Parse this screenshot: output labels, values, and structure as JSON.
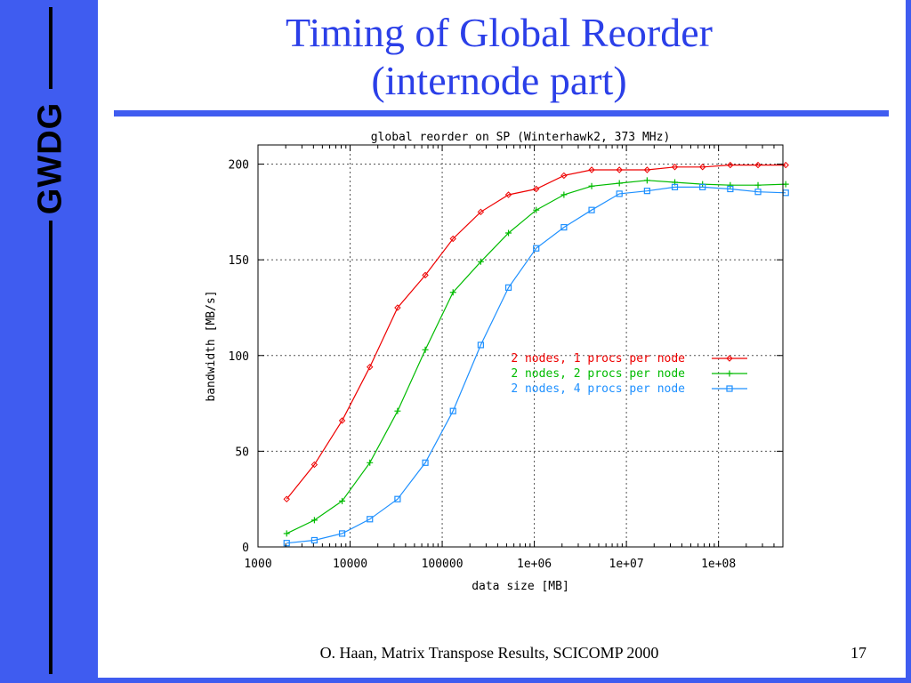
{
  "slide": {
    "brand": "GWDG",
    "title_line1": "Timing of Global Reorder",
    "title_line2": "(internode part)",
    "footer": "O. Haan, Matrix Transpose Results, SCICOMP 2000",
    "page_number": "17"
  },
  "colors": {
    "accent_blue": "#3f5cf0",
    "title_blue": "#2b3fe8",
    "series_red": "#ee0000",
    "series_green": "#00bb00",
    "series_blue": "#1e90ff"
  },
  "chart_data": {
    "type": "line",
    "title": "global reorder on SP (Winterhawk2, 373 MHz)",
    "xlabel": "data size [MB]",
    "ylabel": "bandwidth [MB/s]",
    "xscale": "log",
    "xlim": [
      1000,
      500000000
    ],
    "ylim": [
      0,
      210
    ],
    "xticks": [
      1000,
      10000,
      100000,
      1000000,
      10000000,
      100000000
    ],
    "xtick_labels": [
      "1000",
      "10000",
      "100000",
      "1e+06",
      "1e+07",
      "1e+08"
    ],
    "yticks": [
      0,
      50,
      100,
      150,
      200
    ],
    "ytick_labels": [
      "0",
      "50",
      "100",
      "150",
      "200"
    ],
    "grid": true,
    "legend_position": "center-right",
    "x": [
      2048,
      4096,
      8192,
      16384,
      32768,
      65536,
      131072,
      262144,
      524288,
      1048576,
      2097152,
      4194304,
      8388608,
      16777216,
      33554432,
      67108864,
      134217728,
      268435456,
      536870912
    ],
    "series": [
      {
        "name": "2 nodes, 1 procs per node",
        "marker": "diamond",
        "values": [
          25,
          43,
          66,
          94,
          125,
          142,
          161,
          175,
          184,
          187,
          194,
          197,
          197,
          197,
          198.5,
          198.5,
          199.5,
          199.5,
          199.5
        ]
      },
      {
        "name": "2 nodes, 2 procs per node",
        "marker": "plus",
        "values": [
          7,
          14,
          24,
          44,
          71,
          103,
          133,
          149,
          164,
          176,
          184,
          188.5,
          190,
          191.5,
          190.5,
          189.5,
          189,
          189,
          189.5
        ]
      },
      {
        "name": "2 nodes, 4 procs per node",
        "marker": "square",
        "values": [
          2,
          3.5,
          7,
          14.5,
          25,
          44,
          71,
          105.5,
          135.5,
          156,
          167,
          176,
          184.5,
          186,
          188,
          188,
          187,
          185.5,
          185
        ]
      }
    ]
  }
}
